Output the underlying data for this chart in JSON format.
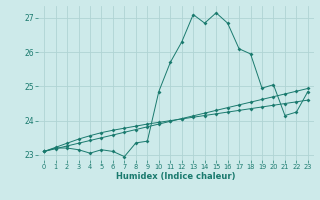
{
  "xlabel": "Humidex (Indice chaleur)",
  "background_color": "#cdeaea",
  "grid_color": "#b0d4d4",
  "line_color": "#1a7a6e",
  "xlim": [
    -0.5,
    23.5
  ],
  "ylim": [
    22.85,
    27.35
  ],
  "yticks": [
    23,
    24,
    25,
    26,
    27
  ],
  "xticks": [
    0,
    1,
    2,
    3,
    4,
    5,
    6,
    7,
    8,
    9,
    10,
    11,
    12,
    13,
    14,
    15,
    16,
    17,
    18,
    19,
    20,
    21,
    22,
    23
  ],
  "line1_y": [
    23.1,
    23.2,
    23.2,
    23.15,
    23.05,
    23.15,
    23.1,
    22.95,
    23.35,
    23.4,
    24.85,
    25.7,
    26.3,
    27.1,
    26.85,
    27.15,
    26.85,
    26.1,
    25.95,
    24.95,
    25.05,
    24.15,
    24.25,
    24.85
  ],
  "line2_y": [
    23.1,
    23.18,
    23.26,
    23.34,
    23.42,
    23.5,
    23.58,
    23.66,
    23.74,
    23.82,
    23.9,
    23.98,
    24.06,
    24.14,
    24.22,
    24.3,
    24.38,
    24.46,
    24.54,
    24.62,
    24.7,
    24.78,
    24.86,
    24.94
  ],
  "line3_y": [
    23.1,
    23.22,
    23.34,
    23.46,
    23.56,
    23.65,
    23.72,
    23.78,
    23.84,
    23.9,
    23.95,
    24.0,
    24.05,
    24.1,
    24.15,
    24.2,
    24.25,
    24.3,
    24.35,
    24.4,
    24.45,
    24.5,
    24.55,
    24.6
  ]
}
